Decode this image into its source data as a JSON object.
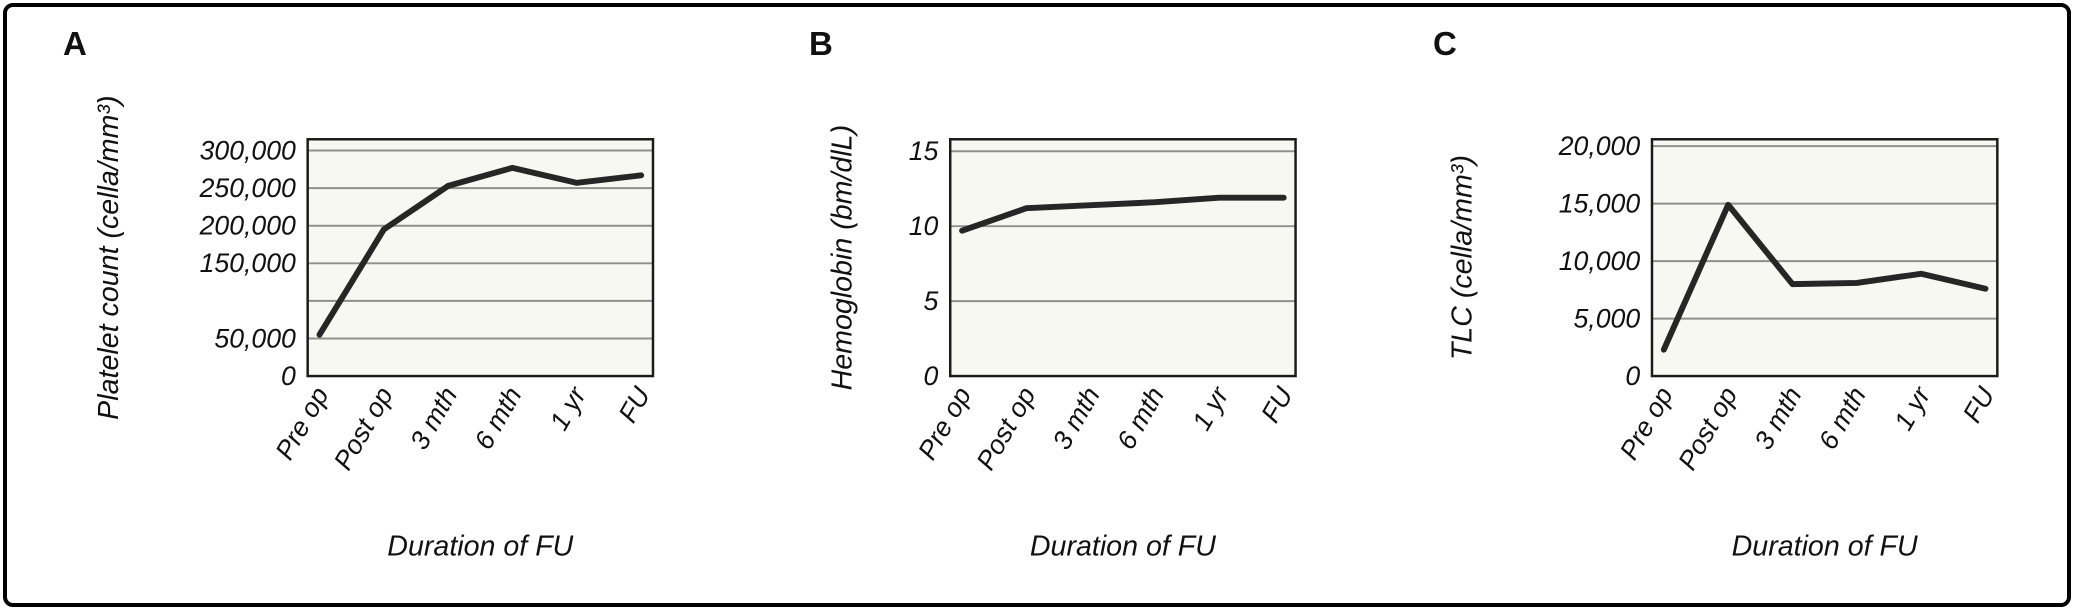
{
  "chart_data": [
    {
      "type": "line",
      "panel_letter": "A",
      "xlabel": "Duration of FU",
      "ylabel": "Platelet count (cella/mm³)",
      "categories": [
        "Pre op",
        "Post op",
        "3 mth",
        "6 mth",
        "1 yr",
        "FU"
      ],
      "values": [
        55000,
        195000,
        253000,
        277000,
        257000,
        267000
      ],
      "ylim": [
        0,
        315000
      ],
      "grid": true,
      "gridlines": [
        0,
        50000,
        100000,
        150000,
        200000,
        250000,
        300000
      ],
      "yticks": [
        {
          "label": "300,000",
          "value": 300000
        },
        {
          "label": "250,000",
          "value": 250000
        },
        {
          "label": "200,000",
          "value": 200000
        },
        {
          "label": "150,000",
          "value": 150000
        },
        {
          "label": "50,000",
          "value": 50000
        },
        {
          "label": "0",
          "value": 0
        }
      ]
    },
    {
      "type": "line",
      "panel_letter": "B",
      "xlabel": "Duration of FU",
      "ylabel": "Hemoglobin (bm/dlL)",
      "categories": [
        "Pre op",
        "Post op",
        "3 mth",
        "6 mth",
        "1 yr",
        "FU"
      ],
      "values": [
        9.7,
        11.2,
        11.4,
        11.6,
        11.9,
        11.9
      ],
      "ylim": [
        0,
        15.8
      ],
      "grid": true,
      "gridlines": [
        0,
        5,
        10,
        15
      ],
      "yticks": [
        {
          "label": "15",
          "value": 15
        },
        {
          "label": "10",
          "value": 10
        },
        {
          "label": "5",
          "value": 5
        },
        {
          "label": "0",
          "value": 0
        }
      ]
    },
    {
      "type": "line",
      "panel_letter": "C",
      "xlabel": "Duration of FU",
      "ylabel": "TLC (cella/mm³)",
      "categories": [
        "Pre op",
        "Post op",
        "3 mth",
        "6 mth",
        "1 yr",
        "FU"
      ],
      "values": [
        2300,
        14900,
        8000,
        8100,
        8900,
        7600
      ],
      "ylim": [
        0,
        20600
      ],
      "grid": true,
      "gridlines": [
        0,
        5000,
        10000,
        15000,
        20000
      ],
      "yticks": [
        {
          "label": "20,000",
          "value": 20000
        },
        {
          "label": "15,000",
          "value": 15000
        },
        {
          "label": "10,000",
          "value": 10000
        },
        {
          "label": "5,000",
          "value": 5000
        },
        {
          "label": "0",
          "value": 0
        }
      ]
    }
  ]
}
